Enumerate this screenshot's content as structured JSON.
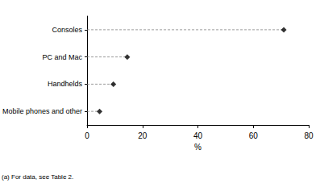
{
  "chart_data": {
    "type": "dot",
    "orientation": "horizontal",
    "categories": [
      "Consoles",
      "PC and Mac",
      "Handhelds",
      "Mobile phones and other"
    ],
    "values": [
      71,
      14.5,
      9.5,
      4.5
    ],
    "color": "#000000",
    "marker": "diamond",
    "line_style": "dashed",
    "x_label": "%",
    "xlim": [
      0,
      80
    ],
    "xticks": [
      0,
      20,
      40,
      60,
      80
    ],
    "grid": false,
    "annotations": [
      "(a) For data, see Table 2."
    ]
  }
}
